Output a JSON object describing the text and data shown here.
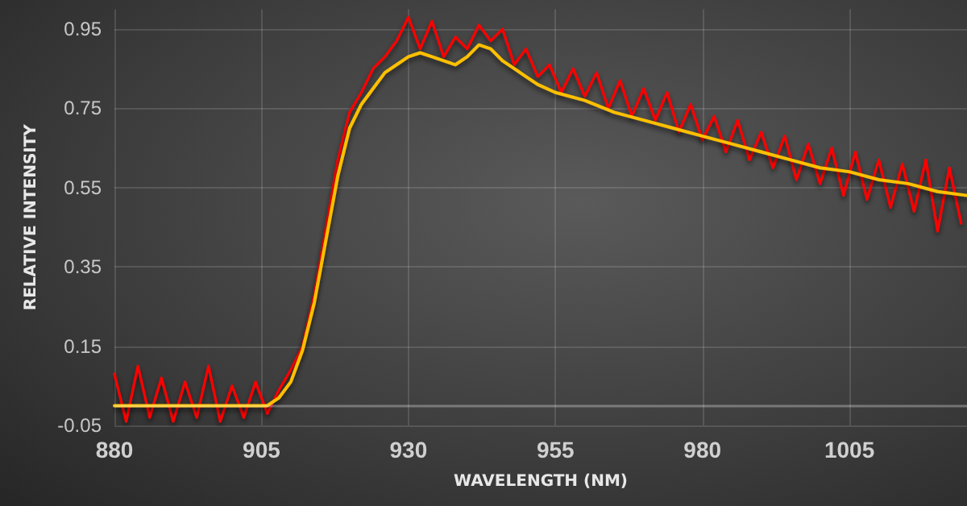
{
  "chart_data": {
    "type": "line",
    "xlabel": "WAVELENGTH (NM)",
    "ylabel": "RELATIVE INTENSITY",
    "xlim": [
      880,
      1025
    ],
    "xticks": [
      880,
      905,
      930,
      955,
      980,
      1005
    ],
    "ylim": [
      -0.05,
      1.0
    ],
    "yticks": [
      -0.05,
      0.15,
      0.35,
      0.55,
      0.75,
      0.95
    ],
    "grid": true,
    "marker": "none",
    "line_style": "solid",
    "ref_lines": [
      {
        "axis": "y",
        "value": 0
      }
    ],
    "series": [
      {
        "color": "#ff0000",
        "x": [
          880,
          882,
          884,
          886,
          888,
          890,
          892,
          894,
          896,
          898,
          900,
          902,
          904,
          906,
          908,
          910,
          912,
          914,
          916,
          918,
          920,
          922,
          924,
          926,
          928,
          930,
          932,
          934,
          936,
          938,
          940,
          942,
          944,
          946,
          948,
          950,
          952,
          954,
          956,
          958,
          960,
          962,
          964,
          966,
          968,
          970,
          972,
          974,
          976,
          978,
          980,
          982,
          984,
          986,
          988,
          990,
          992,
          994,
          996,
          998,
          1000,
          1002,
          1004,
          1006,
          1008,
          1010,
          1012,
          1014,
          1016,
          1018,
          1020,
          1022,
          1024
        ],
        "values": [
          0.08,
          -0.04,
          0.1,
          -0.03,
          0.07,
          -0.04,
          0.06,
          -0.03,
          0.1,
          -0.04,
          0.05,
          -0.03,
          0.06,
          -0.02,
          0.04,
          0.09,
          0.15,
          0.28,
          0.45,
          0.62,
          0.74,
          0.79,
          0.85,
          0.88,
          0.92,
          0.98,
          0.9,
          0.97,
          0.88,
          0.93,
          0.9,
          0.96,
          0.92,
          0.95,
          0.86,
          0.9,
          0.83,
          0.86,
          0.79,
          0.85,
          0.78,
          0.84,
          0.75,
          0.82,
          0.73,
          0.8,
          0.72,
          0.79,
          0.69,
          0.76,
          0.67,
          0.73,
          0.64,
          0.72,
          0.62,
          0.69,
          0.6,
          0.68,
          0.57,
          0.66,
          0.56,
          0.65,
          0.53,
          0.64,
          0.52,
          0.62,
          0.5,
          0.61,
          0.49,
          0.62,
          0.44,
          0.6,
          0.46
        ]
      },
      {
        "color": "#ffc000",
        "x": [
          880,
          890,
          900,
          906,
          908,
          910,
          912,
          914,
          916,
          918,
          920,
          922,
          924,
          926,
          928,
          930,
          932,
          934,
          936,
          938,
          940,
          942,
          944,
          946,
          948,
          950,
          952,
          955,
          960,
          965,
          970,
          975,
          980,
          985,
          990,
          995,
          1000,
          1005,
          1010,
          1015,
          1020,
          1025
        ],
        "values": [
          0,
          0,
          0,
          0,
          0.02,
          0.06,
          0.14,
          0.26,
          0.42,
          0.58,
          0.7,
          0.76,
          0.8,
          0.84,
          0.86,
          0.88,
          0.89,
          0.88,
          0.87,
          0.86,
          0.88,
          0.91,
          0.9,
          0.87,
          0.85,
          0.83,
          0.81,
          0.79,
          0.77,
          0.74,
          0.72,
          0.7,
          0.68,
          0.66,
          0.64,
          0.62,
          0.6,
          0.59,
          0.57,
          0.56,
          0.54,
          0.53
        ]
      }
    ]
  }
}
